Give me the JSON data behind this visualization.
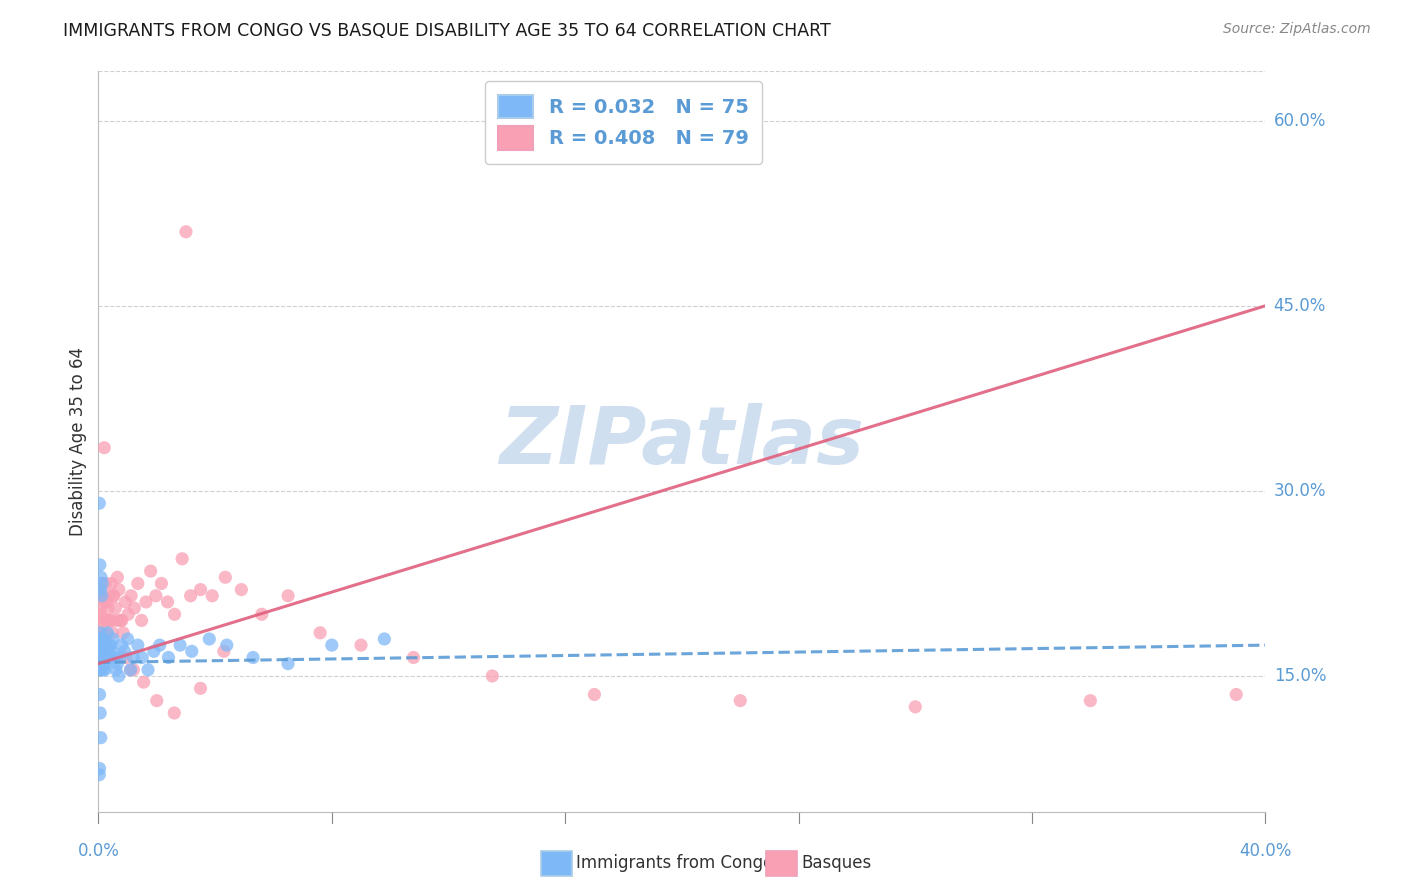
{
  "title": "IMMIGRANTS FROM CONGO VS BASQUE DISABILITY AGE 35 TO 64 CORRELATION CHART",
  "source": "Source: ZipAtlas.com",
  "ylabel": "Disability Age 35 to 64",
  "right_yticks": [
    "60.0%",
    "45.0%",
    "30.0%",
    "15.0%"
  ],
  "right_ytick_vals": [
    0.6,
    0.45,
    0.3,
    0.15
  ],
  "xlim": [
    0.0,
    0.4
  ],
  "ylim": [
    0.04,
    0.64
  ],
  "watermark": "ZIPatlas",
  "legend_label1": "R = 0.032   N = 75",
  "legend_label2": "R = 0.408   N = 79",
  "series1_color": "#7eb8f7",
  "series2_color": "#f9a0b4",
  "trendline1_color": "#5b9bd5",
  "trendline2_color": "#e0607e",
  "series1_label": "Immigrants from Congo",
  "series2_label": "Basques",
  "congo_x": [
    0.0002,
    0.0003,
    0.0003,
    0.0004,
    0.0004,
    0.0005,
    0.0005,
    0.0006,
    0.0006,
    0.0007,
    0.0007,
    0.0008,
    0.0008,
    0.0009,
    0.001,
    0.001,
    0.0011,
    0.0012,
    0.0013,
    0.0014,
    0.0015,
    0.0016,
    0.0017,
    0.0018,
    0.0019,
    0.002,
    0.0021,
    0.0022,
    0.0023,
    0.0024,
    0.0025,
    0.0027,
    0.0029,
    0.0031,
    0.0033,
    0.0036,
    0.0039,
    0.0042,
    0.0046,
    0.005,
    0.0055,
    0.006,
    0.0065,
    0.007,
    0.0075,
    0.008,
    0.009,
    0.01,
    0.011,
    0.012,
    0.0135,
    0.015,
    0.017,
    0.019,
    0.021,
    0.024,
    0.028,
    0.032,
    0.038,
    0.044,
    0.053,
    0.065,
    0.08,
    0.098,
    0.0003,
    0.0005,
    0.0007,
    0.0009,
    0.0011,
    0.0013,
    0.0004,
    0.0006,
    0.0008,
    0.0003,
    0.0004
  ],
  "congo_y": [
    0.165,
    0.175,
    0.16,
    0.17,
    0.18,
    0.155,
    0.175,
    0.165,
    0.185,
    0.17,
    0.16,
    0.175,
    0.155,
    0.165,
    0.17,
    0.18,
    0.16,
    0.175,
    0.165,
    0.17,
    0.155,
    0.18,
    0.165,
    0.175,
    0.16,
    0.17,
    0.165,
    0.155,
    0.175,
    0.165,
    0.16,
    0.175,
    0.165,
    0.185,
    0.17,
    0.165,
    0.175,
    0.175,
    0.17,
    0.18,
    0.165,
    0.155,
    0.16,
    0.15,
    0.165,
    0.175,
    0.17,
    0.18,
    0.155,
    0.165,
    0.175,
    0.165,
    0.155,
    0.17,
    0.175,
    0.165,
    0.175,
    0.17,
    0.18,
    0.175,
    0.165,
    0.16,
    0.175,
    0.18,
    0.29,
    0.24,
    0.22,
    0.23,
    0.215,
    0.225,
    0.135,
    0.12,
    0.1,
    0.07,
    0.075
  ],
  "basque_x": [
    0.0003,
    0.0005,
    0.0007,
    0.0009,
    0.0011,
    0.0013,
    0.0015,
    0.0017,
    0.0019,
    0.0021,
    0.0023,
    0.0025,
    0.0027,
    0.003,
    0.0033,
    0.0036,
    0.004,
    0.0044,
    0.0048,
    0.0053,
    0.0058,
    0.0064,
    0.007,
    0.0077,
    0.0085,
    0.0093,
    0.0102,
    0.0112,
    0.0123,
    0.0135,
    0.0148,
    0.0163,
    0.0179,
    0.0197,
    0.0216,
    0.0237,
    0.0261,
    0.0287,
    0.0316,
    0.035,
    0.039,
    0.0435,
    0.043,
    0.049,
    0.056,
    0.065,
    0.076,
    0.09,
    0.108,
    0.135,
    0.17,
    0.22,
    0.28,
    0.34,
    0.39,
    0.0004,
    0.0006,
    0.0008,
    0.001,
    0.0012,
    0.0014,
    0.0016,
    0.0018,
    0.0022,
    0.0028,
    0.0035,
    0.005,
    0.0065,
    0.008,
    0.0095,
    0.012,
    0.0155,
    0.02,
    0.026,
    0.035,
    0.002,
    0.0045,
    0.011,
    0.03
  ],
  "basque_y": [
    0.17,
    0.2,
    0.155,
    0.185,
    0.175,
    0.215,
    0.165,
    0.195,
    0.18,
    0.21,
    0.17,
    0.225,
    0.185,
    0.195,
    0.205,
    0.215,
    0.195,
    0.225,
    0.185,
    0.215,
    0.205,
    0.195,
    0.22,
    0.195,
    0.185,
    0.21,
    0.2,
    0.215,
    0.205,
    0.225,
    0.195,
    0.21,
    0.235,
    0.215,
    0.225,
    0.21,
    0.2,
    0.245,
    0.215,
    0.22,
    0.215,
    0.23,
    0.17,
    0.22,
    0.2,
    0.215,
    0.185,
    0.175,
    0.165,
    0.15,
    0.135,
    0.13,
    0.125,
    0.13,
    0.135,
    0.215,
    0.195,
    0.205,
    0.185,
    0.225,
    0.165,
    0.175,
    0.18,
    0.175,
    0.21,
    0.195,
    0.215,
    0.23,
    0.195,
    0.165,
    0.155,
    0.145,
    0.13,
    0.12,
    0.14,
    0.335,
    0.195,
    0.155,
    0.51
  ],
  "trendline1_x": [
    0.0,
    0.4
  ],
  "trendline1_y": [
    0.161,
    0.175
  ],
  "trendline2_x": [
    0.0,
    0.4
  ],
  "trendline2_y": [
    0.16,
    0.45
  ],
  "grid_color": "#d0d0d0",
  "title_color": "#1a1a1a",
  "axis_label_color": "#5b9bd5",
  "watermark_color": "#d0dff0",
  "background_color": "#ffffff"
}
